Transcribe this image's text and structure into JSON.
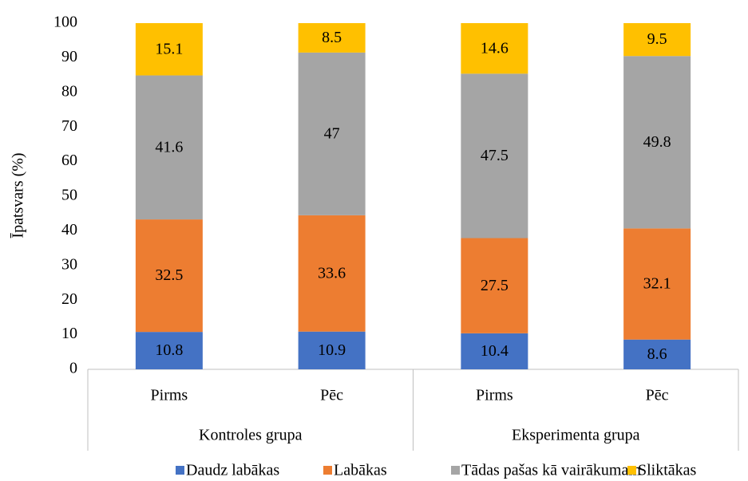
{
  "chart_data": {
    "type": "stacked_bar",
    "y_label": "Īpatsvars (%)",
    "categories": [
      "Pirms",
      "Pēc",
      "Pirms",
      "Pēc"
    ],
    "groups": [
      "Kontroles grupa",
      "Eksperimenta grupa"
    ],
    "series": [
      {
        "name": "Daudz labākas",
        "color": "#4472c4",
        "values": [
          10.8,
          10.9,
          10.4,
          8.6
        ]
      },
      {
        "name": "Labākas",
        "color": "#ed7d31",
        "values": [
          32.5,
          33.6,
          27.5,
          32.1
        ]
      },
      {
        "name": "Tādas pašas kā vairākumam",
        "color": "#a5a5a5",
        "values": [
          41.6,
          47,
          47.5,
          49.8
        ]
      },
      {
        "name": "Sliktākas",
        "color": "#ffc000",
        "values": [
          15.1,
          8.5,
          14.6,
          9.5
        ]
      }
    ],
    "ylim": [
      0,
      100
    ],
    "yticks": [
      0,
      10,
      20,
      30,
      40,
      50,
      60,
      70,
      80,
      90,
      100
    ],
    "grid": false,
    "legend": "bottom"
  }
}
